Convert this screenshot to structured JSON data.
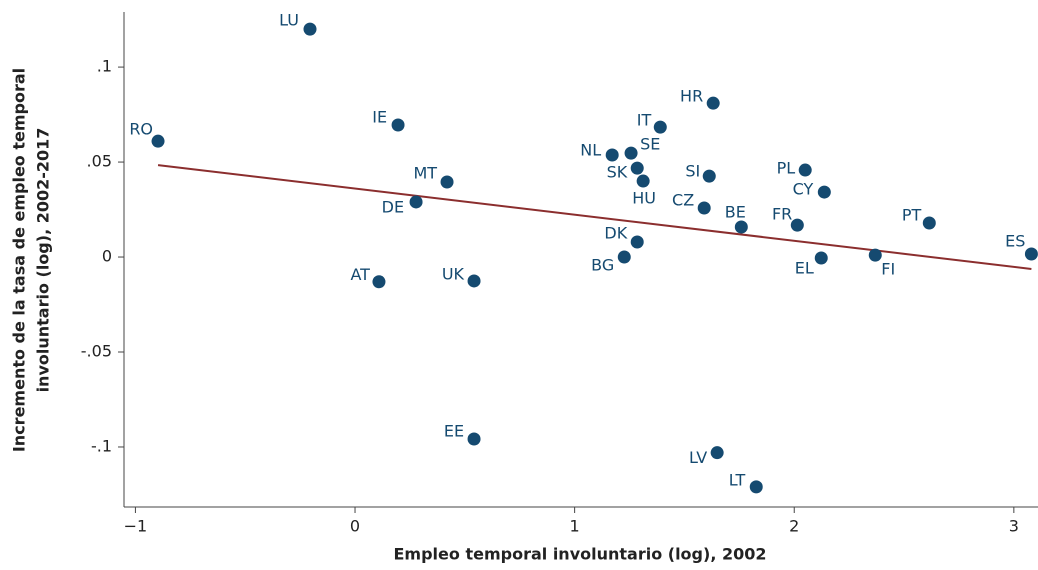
{
  "chart_data": {
    "type": "scatter",
    "xlabel": "Empleo temporal involuntario (log), 2002",
    "ylabel": [
      "Incremento de la tasa de empleo temporal",
      "involuntario (log), 2002-2017"
    ],
    "labels": [
      "LU",
      "RO",
      "IE",
      "MT",
      "DE",
      "AT",
      "UK",
      "EE",
      "NL",
      "SE",
      "IT",
      "HR",
      "SK",
      "HU",
      "SI",
      "CZ",
      "DK",
      "BG",
      "BE",
      "FR",
      "PL",
      "CY",
      "EL",
      "FI",
      "PT",
      "ES",
      "LV",
      "LT"
    ],
    "x": [
      -0.205,
      -0.897,
      0.196,
      0.419,
      0.278,
      0.109,
      0.542,
      0.542,
      1.171,
      1.257,
      1.39,
      1.631,
      1.285,
      1.312,
      1.613,
      1.59,
      1.285,
      1.226,
      1.759,
      2.014,
      2.05,
      2.137,
      2.123,
      2.369,
      2.615,
      3.08,
      1.649,
      1.827
    ],
    "values": [
      0.12,
      0.061,
      0.0695,
      0.0395,
      0.029,
      -0.013,
      -0.0126,
      -0.0958,
      0.0537,
      0.0547,
      0.0684,
      0.081,
      0.0468,
      0.04,
      0.0426,
      0.0258,
      0.0079,
      0,
      0.0158,
      0.0168,
      0.0458,
      0.0342,
      -0.0005,
      0.001,
      0.0179,
      0.0016,
      -0.103,
      -0.121
    ],
    "color": "#154a70",
    "trendline": {
      "x": [
        -0.897,
        3.08
      ],
      "values": [
        0.0484,
        -0.0063
      ],
      "color": "#8b2e2e"
    },
    "xlim": [
      -1.052,
      3.11
    ],
    "ylim": [
      -0.1316,
      0.129
    ],
    "xticks": [
      {
        "value": -1,
        "label": "−1"
      },
      0,
      1,
      2,
      3
    ],
    "yticks": [
      {
        "value": 0.1,
        "label": ".1"
      },
      {
        "value": 0.05,
        "label": ".05"
      },
      0,
      {
        "value": -0.05,
        "label": "-.05"
      },
      {
        "value": -0.1,
        "label": "-.1"
      }
    ]
  }
}
